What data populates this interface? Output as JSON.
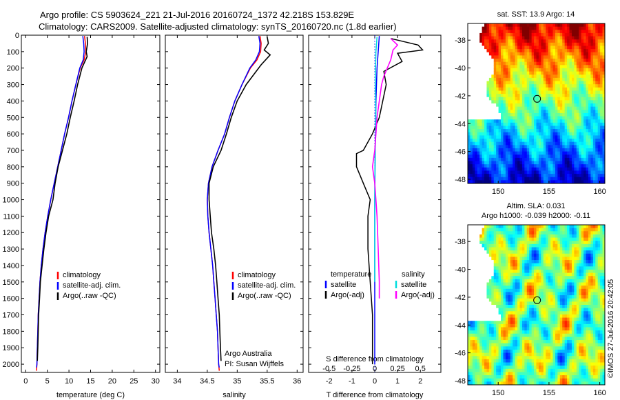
{
  "header": {
    "line1": "Argo profile: CS 5903624_221 21-Jul-2016 20160724_1372 42.218S 153.829E",
    "line2": "Climatology: CARS2009. Satellite-adjusted climatology: synTS_20160720.nc (1.8d earlier)"
  },
  "colors": {
    "climatology": "#ff0000",
    "satellite_adj": "#0000ff",
    "argo": "#000000",
    "salinity_satellite": "#00dddd",
    "salinity_argo": "#ff00ff"
  },
  "chart_data": [
    {
      "type": "line",
      "id": "temperature",
      "xlabel": "temperature (deg C)",
      "xlim": [
        -1,
        31
      ],
      "ylim": [
        2050,
        0
      ],
      "xticks": [
        "0",
        "5",
        "10",
        "15",
        "20",
        "25",
        "30"
      ],
      "yticks": [
        "0",
        "100",
        "200",
        "300",
        "400",
        "500",
        "600",
        "700",
        "800",
        "900",
        "1000",
        "1100",
        "1200",
        "1300",
        "1400",
        "1500",
        "1600",
        "1700",
        "1800",
        "1900",
        "2000"
      ],
      "legend": [
        "climatology",
        "satellite-adj. clim.",
        "Argo(..raw -QC)"
      ],
      "series": [
        {
          "name": "climatology",
          "color": "#ff0000",
          "points": [
            [
              13.6,
              5
            ],
            [
              13.8,
              50
            ],
            [
              13.9,
              100
            ],
            [
              13.5,
              150
            ],
            [
              12.6,
              200
            ],
            [
              11.6,
              300
            ],
            [
              10.7,
              400
            ],
            [
              9.9,
              500
            ],
            [
              9.0,
              600
            ],
            [
              8.2,
              700
            ],
            [
              7.4,
              800
            ],
            [
              6.6,
              900
            ],
            [
              5.8,
              1000
            ],
            [
              5.1,
              1100
            ],
            [
              4.5,
              1200
            ],
            [
              4.0,
              1300
            ],
            [
              3.6,
              1400
            ],
            [
              3.3,
              1500
            ],
            [
              3.1,
              1600
            ],
            [
              2.9,
              1700
            ],
            [
              2.8,
              1800
            ],
            [
              2.7,
              1900
            ],
            [
              2.6,
              2000
            ],
            [
              2.5,
              2040
            ]
          ]
        },
        {
          "name": "satellite-adj. clim.",
          "color": "#0000ff",
          "points": [
            [
              13.2,
              5
            ],
            [
              13.4,
              50
            ],
            [
              13.5,
              100
            ],
            [
              13.3,
              150
            ],
            [
              12.5,
              200
            ],
            [
              11.6,
              300
            ],
            [
              10.7,
              400
            ],
            [
              9.9,
              500
            ],
            [
              9.0,
              600
            ],
            [
              8.2,
              700
            ],
            [
              7.4,
              800
            ],
            [
              6.6,
              900
            ],
            [
              5.8,
              1000
            ],
            [
              5.1,
              1100
            ],
            [
              4.5,
              1200
            ],
            [
              4.0,
              1300
            ],
            [
              3.6,
              1400
            ],
            [
              3.3,
              1500
            ],
            [
              3.1,
              1600
            ],
            [
              2.9,
              1700
            ],
            [
              2.8,
              1800
            ],
            [
              2.7,
              1900
            ],
            [
              2.6,
              2000
            ],
            [
              2.5,
              2020
            ]
          ]
        },
        {
          "name": "Argo(..raw -QC)",
          "color": "#000000",
          "points": [
            [
              14.2,
              10
            ],
            [
              14.3,
              50
            ],
            [
              14.0,
              100
            ],
            [
              14.2,
              130
            ],
            [
              13.0,
              200
            ],
            [
              12.0,
              300
            ],
            [
              11.2,
              400
            ],
            [
              10.3,
              500
            ],
            [
              9.5,
              600
            ],
            [
              8.5,
              700
            ],
            [
              7.5,
              800
            ],
            [
              6.8,
              900
            ],
            [
              6.3,
              1000
            ],
            [
              5.3,
              1100
            ],
            [
              4.7,
              1200
            ],
            [
              4.2,
              1300
            ],
            [
              3.8,
              1400
            ],
            [
              3.4,
              1500
            ],
            [
              3.2,
              1600
            ],
            [
              3.0,
              1700
            ],
            [
              2.9,
              1800
            ],
            [
              2.8,
              1900
            ],
            [
              2.7,
              1980
            ]
          ]
        }
      ]
    },
    {
      "type": "line",
      "id": "salinity",
      "xlabel": "salinity",
      "xlim": [
        33.8,
        36.1
      ],
      "ylim": [
        2050,
        0
      ],
      "xticks": [
        "34",
        "34.5",
        "35",
        "35.5",
        "36"
      ],
      "legend": [
        "climatology",
        "satellite-adj. clim.",
        "Argo(..raw -QC)"
      ],
      "annotation": [
        "Argo Australia",
        "PI: Susan Wijffels"
      ],
      "series": [
        {
          "name": "climatology",
          "color": "#ff0000",
          "points": [
            [
              35.38,
              5
            ],
            [
              35.4,
              50
            ],
            [
              35.39,
              100
            ],
            [
              35.33,
              150
            ],
            [
              35.22,
              200
            ],
            [
              35.08,
              300
            ],
            [
              34.96,
              400
            ],
            [
              34.87,
              500
            ],
            [
              34.79,
              600
            ],
            [
              34.68,
              700
            ],
            [
              34.58,
              800
            ],
            [
              34.52,
              900
            ],
            [
              34.5,
              1000
            ],
            [
              34.51,
              1100
            ],
            [
              34.53,
              1200
            ],
            [
              34.56,
              1300
            ],
            [
              34.59,
              1400
            ],
            [
              34.61,
              1500
            ],
            [
              34.63,
              1600
            ],
            [
              34.65,
              1700
            ],
            [
              34.67,
              1800
            ],
            [
              34.68,
              1900
            ],
            [
              34.69,
              2000
            ],
            [
              34.7,
              2040
            ]
          ]
        },
        {
          "name": "satellite-adj. clim.",
          "color": "#0000ff",
          "points": [
            [
              35.36,
              5
            ],
            [
              35.38,
              50
            ],
            [
              35.37,
              100
            ],
            [
              35.31,
              150
            ],
            [
              35.21,
              200
            ],
            [
              35.08,
              300
            ],
            [
              34.96,
              400
            ],
            [
              34.87,
              500
            ],
            [
              34.79,
              600
            ],
            [
              34.68,
              700
            ],
            [
              34.58,
              800
            ],
            [
              34.52,
              900
            ],
            [
              34.5,
              1000
            ],
            [
              34.51,
              1100
            ],
            [
              34.53,
              1200
            ],
            [
              34.56,
              1300
            ],
            [
              34.59,
              1400
            ],
            [
              34.61,
              1500
            ],
            [
              34.63,
              1600
            ],
            [
              34.65,
              1700
            ],
            [
              34.67,
              1800
            ],
            [
              34.68,
              1900
            ],
            [
              34.69,
              2000
            ],
            [
              34.7,
              2020
            ]
          ]
        },
        {
          "name": "Argo(..raw -QC)",
          "color": "#000000",
          "points": [
            [
              35.5,
              10
            ],
            [
              35.52,
              50
            ],
            [
              35.45,
              90
            ],
            [
              35.55,
              120
            ],
            [
              35.4,
              180
            ],
            [
              35.15,
              300
            ],
            [
              35.0,
              400
            ],
            [
              34.9,
              500
            ],
            [
              34.82,
              600
            ],
            [
              34.73,
              700
            ],
            [
              34.6,
              800
            ],
            [
              34.53,
              900
            ],
            [
              34.53,
              1000
            ],
            [
              34.55,
              1100
            ],
            [
              34.57,
              1200
            ],
            [
              34.61,
              1300
            ],
            [
              34.64,
              1400
            ],
            [
              34.66,
              1500
            ],
            [
              34.68,
              1600
            ],
            [
              34.7,
              1700
            ],
            [
              34.71,
              1800
            ],
            [
              34.72,
              1900
            ],
            [
              34.73,
              1980
            ]
          ]
        }
      ]
    },
    {
      "type": "line",
      "id": "differences",
      "xlabel_top": "S difference from climatology",
      "xlabel": "T difference from climatology",
      "xlim": [
        -2.9,
        2.9
      ],
      "ylim": [
        2050,
        0
      ],
      "xticks_T": [
        "-2",
        "-1",
        "0",
        "1",
        "2"
      ],
      "xticks_S": [
        "-0.5",
        "-0.25",
        "0",
        "0.25",
        "0.5"
      ],
      "legend_titles": [
        "temperature",
        "salinity"
      ],
      "legend_left": [
        "satellite",
        "Argo(-adj)"
      ],
      "legend_right": [
        "satellite",
        "Argo(-adj)"
      ],
      "series": [
        {
          "name": "temperature satellite",
          "color": "#0000ff",
          "points": [
            [
              0.2,
              5
            ],
            [
              0.15,
              100
            ],
            [
              0.1,
              200
            ],
            [
              0.05,
              400
            ],
            [
              0.02,
              700
            ],
            [
              0.0,
              1000
            ],
            [
              0.0,
              1500
            ],
            [
              0.0,
              2000
            ]
          ]
        },
        {
          "name": "temperature Argo(-adj)",
          "color": "#000000",
          "points": [
            [
              0.7,
              20
            ],
            [
              1.9,
              60
            ],
            [
              2.1,
              90
            ],
            [
              1.0,
              110
            ],
            [
              1.2,
              160
            ],
            [
              0.4,
              220
            ],
            [
              0.5,
              300
            ],
            [
              0.2,
              500
            ],
            [
              -0.1,
              600
            ],
            [
              -0.5,
              700
            ],
            [
              -0.8,
              720
            ],
            [
              -0.8,
              800
            ],
            [
              -0.5,
              900
            ],
            [
              -0.2,
              1000
            ],
            [
              -0.3,
              1100
            ],
            [
              -0.3,
              1300
            ],
            [
              -0.2,
              1500
            ],
            [
              -0.1,
              1700
            ],
            [
              -0.1,
              1900
            ],
            [
              -0.1,
              2000
            ]
          ]
        },
        {
          "name": "salinity satellite",
          "color": "#00dddd",
          "points": [
            [
              0.1,
              10
            ],
            [
              0.05,
              100
            ],
            [
              0.02,
              300
            ],
            [
              0.05,
              500
            ],
            [
              0.02,
              700
            ],
            [
              0.0,
              900
            ],
            [
              0.0,
              1100
            ],
            [
              0.0,
              1300
            ],
            [
              0.0,
              1500
            ]
          ]
        },
        {
          "name": "salinity Argo(-adj)",
          "color": "#ff00ff",
          "points": [
            [
              0.7,
              20
            ],
            [
              1.0,
              60
            ],
            [
              0.8,
              90
            ],
            [
              0.7,
              150
            ],
            [
              0.4,
              250
            ],
            [
              0.3,
              300
            ],
            [
              0.2,
              400
            ],
            [
              0.1,
              500
            ],
            [
              0.05,
              600
            ],
            [
              0.0,
              700
            ],
            [
              -0.1,
              800
            ],
            [
              0.0,
              900
            ],
            [
              0.05,
              1000
            ],
            [
              0.1,
              1100
            ],
            [
              0.15,
              1300
            ],
            [
              0.2,
              1500
            ],
            [
              0.2,
              1600
            ]
          ]
        }
      ]
    },
    {
      "type": "heatmap",
      "id": "sst_map",
      "title": "sat. SST: 13.9  Argo: 14",
      "xlim": [
        147,
        160.5
      ],
      "ylim": [
        -48.3,
        -36.8
      ],
      "xticks": [
        "150",
        "155",
        "160"
      ],
      "yticks": [
        "-38",
        "-40",
        "-42",
        "-44",
        "-46",
        "-48"
      ],
      "marker": {
        "lon": 153.829,
        "lat": -42.218
      }
    },
    {
      "type": "heatmap",
      "id": "sla_map",
      "title_line1": "Altim. SLA: 0.031",
      "title_line2": "Argo h1000: -0.039  h2000: -0.11",
      "xlim": [
        147,
        160.5
      ],
      "ylim": [
        -48.3,
        -36.8
      ],
      "xticks": [
        "150",
        "155",
        "160"
      ],
      "yticks": [
        "-38",
        "-40",
        "-42",
        "-44",
        "-46",
        "-48"
      ],
      "marker": {
        "lon": 153.829,
        "lat": -42.218
      }
    }
  ],
  "footer": {
    "credit": "©IMOS 27-Jul-2016 20:42:05"
  }
}
